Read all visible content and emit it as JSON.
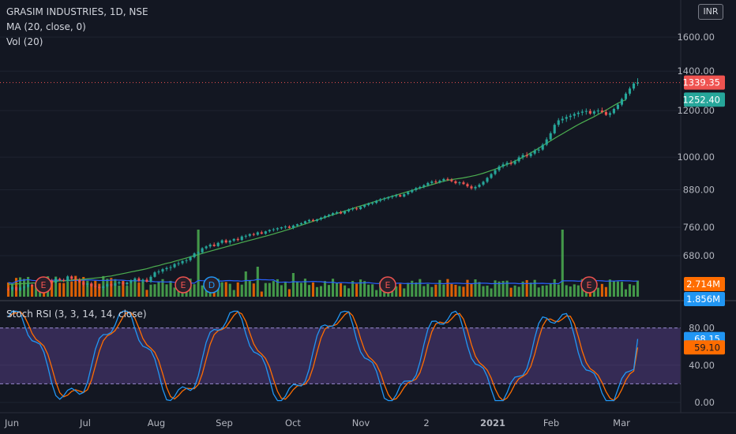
{
  "header": {
    "symbol": "GRASIM INDUSTRIES, 1D, NSE",
    "ma_label": "MA (20, close, 0)",
    "vol_label": "Vol (20)",
    "currency": "INR"
  },
  "stoch_label": "Stoch RSI (3, 3, 14, 14, close)",
  "colors": {
    "background": "#131722",
    "up": "#26a69a",
    "down": "#ef5350",
    "vol_up": "#4caf50",
    "vol_down": "#ff6d00",
    "ma": "#4caf50",
    "vol_ma": "#2962ff",
    "stoch_k": "#2196f3",
    "stoch_d": "#ff6d00",
    "stoch_band": "#7e57c2",
    "price_tag_last": "#ef5350",
    "price_tag_ma": "#26a69a"
  },
  "chart_data": [
    {
      "type": "candlestick",
      "price_axis": {
        "labels": [
          "1600.00",
          "1400.00",
          "1200.00",
          "1000.00",
          "880.00",
          "760.00",
          "680.00"
        ],
        "values": [
          1600,
          1400,
          1200,
          1000,
          880,
          760,
          680
        ],
        "scale": "log"
      },
      "x_labels": [
        "Jun",
        "Jul",
        "Aug",
        "Sep",
        "Oct",
        "Nov",
        "2",
        "2021",
        "Feb",
        "Mar"
      ],
      "last_price": "1339.35",
      "ma_value": "1252.40",
      "candles": [
        [
          597,
          601,
          592,
          596
        ],
        [
          596,
          604,
          592,
          601
        ],
        [
          601,
          603,
          591,
          594
        ],
        [
          594,
          602,
          592,
          600
        ],
        [
          600,
          605,
          594,
          602
        ],
        [
          602,
          611,
          600,
          607
        ],
        [
          607,
          609,
          602,
          604
        ],
        [
          604,
          611,
          602,
          609
        ],
        [
          609,
          613,
          604,
          611
        ],
        [
          611,
          614,
          604,
          606
        ],
        [
          606,
          620,
          602,
          617
        ],
        [
          617,
          621,
          609,
          612
        ],
        [
          612,
          625,
          610,
          621
        ],
        [
          621,
          624,
          615,
          618
        ],
        [
          618,
          622,
          613,
          616
        ],
        [
          616,
          630,
          614,
          627
        ],
        [
          627,
          630,
          618,
          621
        ],
        [
          621,
          626,
          614,
          619
        ],
        [
          619,
          623,
          611,
          613
        ],
        [
          613,
          617,
          603,
          607
        ],
        [
          607,
          612,
          601,
          610
        ],
        [
          610,
          614,
          601,
          604
        ],
        [
          604,
          609,
          598,
          602
        ],
        [
          602,
          607,
          595,
          599
        ],
        [
          599,
          606,
          594,
          603
        ],
        [
          603,
          610,
          600,
          608
        ],
        [
          608,
          612,
          601,
          605
        ],
        [
          605,
          612,
          603,
          610
        ],
        [
          610,
          616,
          606,
          613
        ],
        [
          613,
          616,
          604,
          608
        ],
        [
          608,
          614,
          602,
          612
        ],
        [
          612,
          620,
          609,
          617
        ],
        [
          617,
          625,
          614,
          622
        ],
        [
          622,
          626,
          613,
          616
        ],
        [
          616,
          622,
          610,
          619
        ],
        [
          619,
          624,
          612,
          614
        ],
        [
          614,
          630,
          611,
          626
        ],
        [
          626,
          640,
          624,
          637
        ],
        [
          637,
          644,
          632,
          639
        ],
        [
          639,
          648,
          634,
          645
        ],
        [
          645,
          652,
          640,
          648
        ],
        [
          648,
          655,
          641,
          650
        ],
        [
          650,
          661,
          647,
          658
        ],
        [
          658,
          665,
          653,
          660
        ],
        [
          660,
          668,
          656,
          666
        ],
        [
          666,
          672,
          660,
          668
        ],
        [
          668,
          679,
          664,
          676
        ],
        [
          676,
          689,
          673,
          686
        ],
        [
          686,
          692,
          681,
          689
        ],
        [
          689,
          703,
          685,
          700
        ],
        [
          700,
          708,
          696,
          705
        ],
        [
          705,
          714,
          700,
          710
        ],
        [
          710,
          716,
          704,
          706
        ],
        [
          706,
          718,
          703,
          715
        ],
        [
          715,
          725,
          711,
          722
        ],
        [
          722,
          726,
          713,
          716
        ],
        [
          716,
          724,
          710,
          721
        ],
        [
          721,
          728,
          717,
          726
        ],
        [
          726,
          731,
          719,
          723
        ],
        [
          723,
          736,
          720,
          733
        ],
        [
          733,
          739,
          727,
          735
        ],
        [
          735,
          742,
          731,
          740
        ],
        [
          740,
          744,
          734,
          738
        ],
        [
          738,
          748,
          735,
          745
        ],
        [
          745,
          750,
          739,
          741
        ],
        [
          741,
          750,
          738,
          748
        ],
        [
          748,
          754,
          744,
          752
        ],
        [
          752,
          758,
          747,
          754
        ],
        [
          754,
          760,
          749,
          757
        ],
        [
          757,
          762,
          753,
          760
        ],
        [
          760,
          766,
          755,
          762
        ],
        [
          762,
          766,
          756,
          758
        ],
        [
          758,
          768,
          754,
          765
        ],
        [
          765,
          771,
          761,
          769
        ],
        [
          769,
          775,
          765,
          772
        ],
        [
          772,
          780,
          768,
          778
        ],
        [
          778,
          785,
          773,
          782
        ],
        [
          782,
          786,
          776,
          779
        ],
        [
          779,
          786,
          775,
          784
        ],
        [
          784,
          792,
          780,
          789
        ],
        [
          789,
          797,
          785,
          794
        ],
        [
          794,
          801,
          790,
          798
        ],
        [
          798,
          806,
          794,
          803
        ],
        [
          803,
          810,
          799,
          806
        ],
        [
          806,
          811,
          800,
          802
        ],
        [
          802,
          812,
          799,
          809
        ],
        [
          809,
          818,
          805,
          815
        ],
        [
          815,
          822,
          810,
          818
        ],
        [
          818,
          824,
          812,
          816
        ],
        [
          816,
          826,
          813,
          823
        ],
        [
          823,
          832,
          819,
          829
        ],
        [
          829,
          837,
          825,
          834
        ],
        [
          834,
          840,
          829,
          836
        ],
        [
          836,
          846,
          832,
          843
        ],
        [
          843,
          852,
          838,
          848
        ],
        [
          848,
          855,
          842,
          851
        ],
        [
          851,
          858,
          846,
          855
        ],
        [
          855,
          862,
          849,
          858
        ],
        [
          858,
          866,
          853,
          862
        ],
        [
          862,
          866,
          855,
          857
        ],
        [
          857,
          868,
          854,
          865
        ],
        [
          865,
          876,
          861,
          872
        ],
        [
          872,
          883,
          868,
          879
        ],
        [
          879,
          890,
          874,
          886
        ],
        [
          886,
          894,
          881,
          890
        ],
        [
          890,
          900,
          885,
          896
        ],
        [
          896,
          908,
          891,
          904
        ],
        [
          904,
          914,
          898,
          909
        ],
        [
          909,
          916,
          901,
          906
        ],
        [
          906,
          916,
          902,
          912
        ],
        [
          912,
          922,
          907,
          918
        ],
        [
          918,
          924,
          911,
          915
        ],
        [
          915,
          921,
          906,
          910
        ],
        [
          910,
          914,
          899,
          903
        ],
        [
          903,
          910,
          896,
          906
        ],
        [
          906,
          912,
          897,
          900
        ],
        [
          900,
          905,
          887,
          892
        ],
        [
          892,
          898,
          880,
          885
        ],
        [
          885,
          895,
          878,
          890
        ],
        [
          890,
          903,
          886,
          898
        ],
        [
          898,
          912,
          893,
          908
        ],
        [
          908,
          926,
          903,
          922
        ],
        [
          922,
          940,
          918,
          936
        ],
        [
          936,
          956,
          931,
          950
        ],
        [
          950,
          970,
          944,
          964
        ],
        [
          964,
          980,
          957,
          972
        ],
        [
          972,
          985,
          963,
          978
        ],
        [
          978,
          988,
          968,
          974
        ],
        [
          974,
          990,
          969,
          984
        ],
        [
          984,
          1006,
          978,
          999
        ],
        [
          999,
          1016,
          990,
          1008
        ],
        [
          1008,
          1020,
          997,
          1004
        ],
        [
          1004,
          1021,
          997,
          1014
        ],
        [
          1014,
          1033,
          1008,
          1026
        ],
        [
          1026,
          1040,
          1016,
          1030
        ],
        [
          1030,
          1057,
          1025,
          1050
        ],
        [
          1050,
          1081,
          1044,
          1072
        ],
        [
          1072,
          1106,
          1066,
          1098
        ],
        [
          1098,
          1142,
          1093,
          1135
        ],
        [
          1135,
          1165,
          1126,
          1155
        ],
        [
          1155,
          1174,
          1142,
          1162
        ],
        [
          1162,
          1181,
          1148,
          1170
        ],
        [
          1170,
          1186,
          1156,
          1176
        ],
        [
          1176,
          1192,
          1162,
          1184
        ],
        [
          1184,
          1198,
          1170,
          1190
        ],
        [
          1190,
          1206,
          1177,
          1195
        ],
        [
          1195,
          1210,
          1181,
          1198
        ],
        [
          1198,
          1208,
          1180,
          1186
        ],
        [
          1186,
          1203,
          1177,
          1196
        ],
        [
          1196,
          1210,
          1183,
          1200
        ],
        [
          1200,
          1214,
          1187,
          1193
        ],
        [
          1193,
          1205,
          1175,
          1180
        ],
        [
          1180,
          1196,
          1169,
          1188
        ],
        [
          1188,
          1214,
          1182,
          1208
        ],
        [
          1208,
          1236,
          1202,
          1228
        ],
        [
          1228,
          1262,
          1220,
          1255
        ],
        [
          1255,
          1290,
          1248,
          1282
        ],
        [
          1282,
          1318,
          1272,
          1308
        ],
        [
          1308,
          1342,
          1298,
          1334
        ],
        [
          1334,
          1362,
          1322,
          1339
        ]
      ],
      "ma": [
        608,
        608,
        609,
        609,
        610,
        610,
        611,
        611,
        612,
        613,
        613,
        614,
        615,
        616,
        616,
        617,
        618,
        619,
        619,
        620,
        621,
        622,
        623,
        624,
        625,
        627,
        628,
        630,
        632,
        634,
        636,
        638,
        640,
        642,
        644,
        646,
        649,
        652,
        654,
        657,
        660,
        662,
        665,
        668,
        671,
        674,
        677,
        680,
        683,
        686,
        689,
        692,
        695,
        698,
        701,
        704,
        707,
        710,
        713,
        716,
        719,
        722,
        725,
        728,
        731,
        734,
        737,
        740,
        744,
        747,
        751,
        754,
        758,
        762,
        766,
        770,
        774,
        778,
        782,
        786,
        790,
        794,
        798,
        802,
        806,
        810,
        814,
        818,
        822,
        826,
        830,
        834,
        838,
        842,
        846,
        850,
        854,
        858,
        862,
        866,
        870,
        874,
        878,
        882,
        886,
        890,
        894,
        898,
        902,
        906,
        910,
        913,
        916,
        918,
        920,
        922,
        925,
        928,
        931,
        935,
        939,
        944,
        949,
        954,
        960,
        966,
        972,
        978,
        985,
        992,
        1000,
        1008,
        1017,
        1026,
        1036,
        1046,
        1056,
        1066,
        1076,
        1086,
        1096,
        1106,
        1116,
        1126,
        1136,
        1145,
        1154,
        1163,
        1172,
        1182,
        1192,
        1202,
        1213,
        1224,
        1235,
        1244,
        1252
      ]
    },
    {
      "type": "bar",
      "name": "Vol (20)",
      "current_value": "2.714M",
      "ma_tag_value": "1.856M"
    },
    {
      "type": "line",
      "name": "Stoch RSI (3, 3, 14, 14, close)",
      "y_axis": {
        "labels": [
          "80.00",
          "40.00",
          "0.00"
        ],
        "values": [
          80,
          40,
          0
        ]
      },
      "band": [
        20,
        80
      ],
      "k_value": "68.15",
      "d_value": "59.10"
    }
  ]
}
